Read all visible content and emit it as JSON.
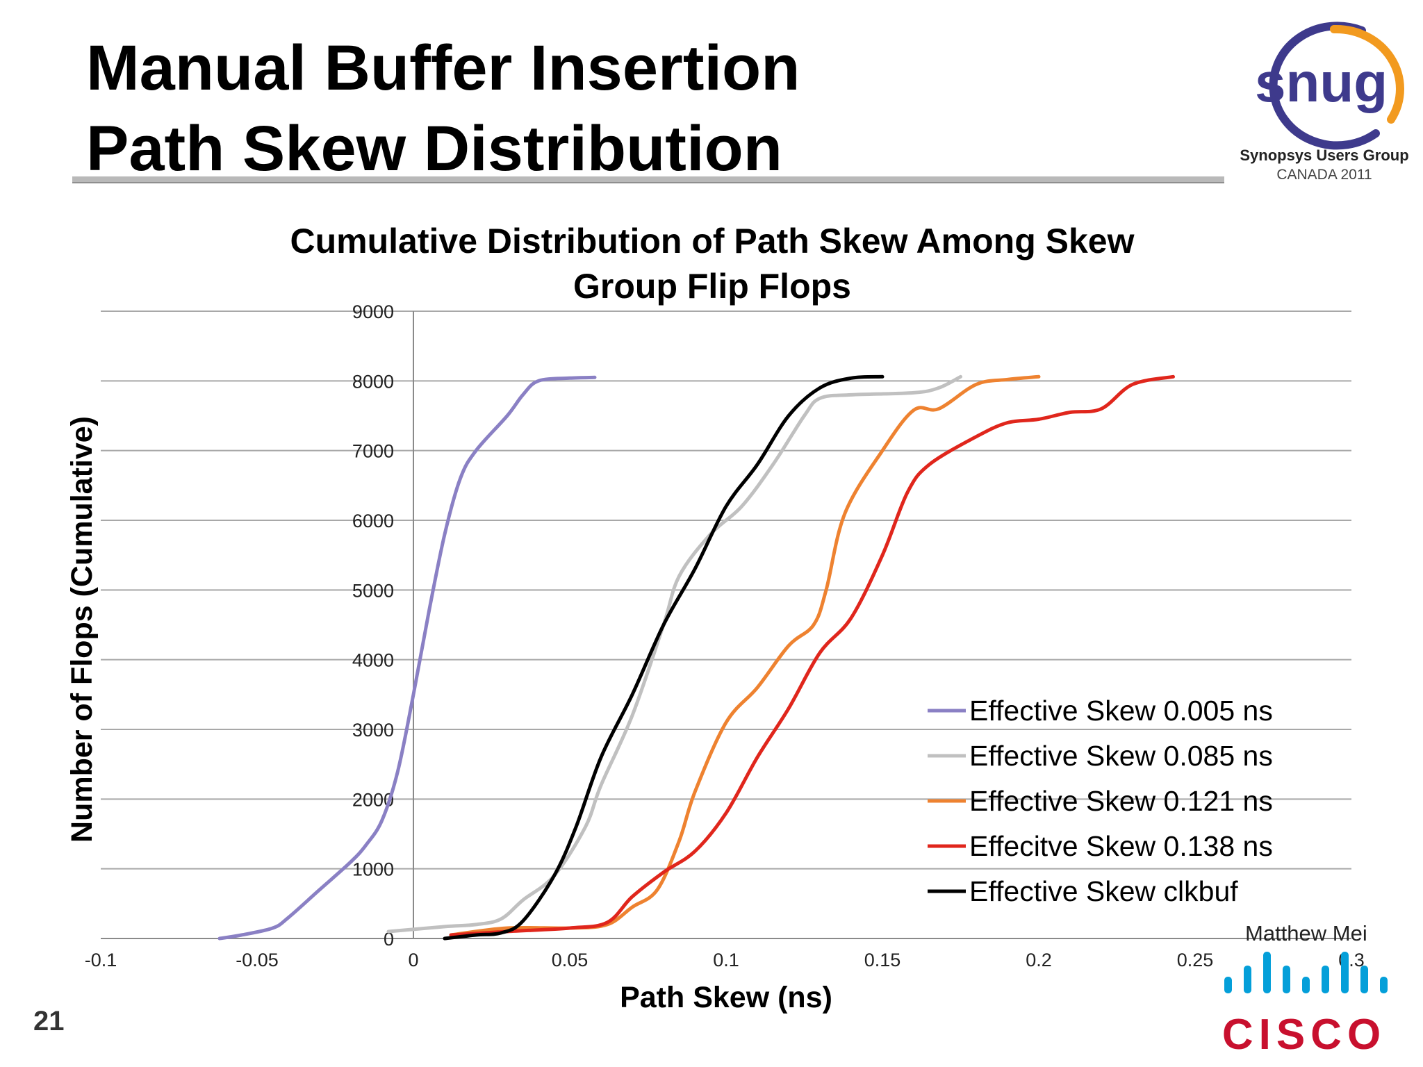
{
  "slide": {
    "title_line1": "Manual Buffer Insertion",
    "title_line2": "Path Skew Distribution",
    "page_number": "21",
    "author": "Matthew Mei",
    "logo_snug": {
      "text": "snug",
      "subtitle": "Synopsys Users Group",
      "event": "CANADA 2011",
      "colors": {
        "ring_purple": "#3e3a8c",
        "ring_orange": "#f29a1f",
        "text": "#3e3a8c"
      }
    },
    "logo_cisco": {
      "text": "CISCO",
      "colors": {
        "bars": "#049fd9",
        "text": "#c8102e"
      }
    }
  },
  "chart_data": {
    "type": "line",
    "title_line1": "Cumulative Distribution of Path Skew Among Skew",
    "title_line2": "Group Flip Flops",
    "xlabel": "Path Skew (ns)",
    "ylabel": "Number of Flops (Cumulative)",
    "xlim": [
      -0.1,
      0.3
    ],
    "ylim": [
      0,
      9000
    ],
    "xticks": [
      -0.1,
      -0.05,
      0,
      0.05,
      0.1,
      0.15,
      0.2,
      0.25,
      0.3
    ],
    "xtick_labels": [
      "-0.1",
      "-0.05",
      "0",
      "0.05",
      "0.1",
      "0.15",
      "0.2",
      "0.25",
      "0.3"
    ],
    "yticks": [
      0,
      1000,
      2000,
      3000,
      4000,
      5000,
      6000,
      7000,
      8000,
      9000
    ],
    "ytick_labels": [
      "0",
      "1000",
      "2000",
      "3000",
      "4000",
      "5000",
      "6000",
      "7000",
      "8000",
      "9000"
    ],
    "grid": {
      "horizontal": true,
      "vertical": false
    },
    "legend_position": "bottom-right",
    "series": [
      {
        "name": "Effective Skew 0.005 ns",
        "color": "#8a80c4",
        "points": [
          [
            -0.062,
            0
          ],
          [
            -0.055,
            50
          ],
          [
            -0.045,
            150
          ],
          [
            -0.04,
            300
          ],
          [
            -0.03,
            700
          ],
          [
            -0.02,
            1100
          ],
          [
            -0.015,
            1350
          ],
          [
            -0.01,
            1700
          ],
          [
            -0.005,
            2400
          ],
          [
            0,
            3500
          ],
          [
            0.005,
            4700
          ],
          [
            0.01,
            5800
          ],
          [
            0.015,
            6600
          ],
          [
            0.02,
            7000
          ],
          [
            0.03,
            7500
          ],
          [
            0.035,
            7800
          ],
          [
            0.04,
            8000
          ],
          [
            0.05,
            8040
          ],
          [
            0.058,
            8050
          ]
        ]
      },
      {
        "name": "Effective Skew 0.085 ns",
        "color": "#c0c0c0",
        "points": [
          [
            -0.008,
            100
          ],
          [
            0.01,
            170
          ],
          [
            0.02,
            200
          ],
          [
            0.028,
            280
          ],
          [
            0.035,
            550
          ],
          [
            0.045,
            900
          ],
          [
            0.055,
            1600
          ],
          [
            0.06,
            2200
          ],
          [
            0.07,
            3200
          ],
          [
            0.08,
            4500
          ],
          [
            0.085,
            5200
          ],
          [
            0.095,
            5800
          ],
          [
            0.105,
            6200
          ],
          [
            0.115,
            6800
          ],
          [
            0.125,
            7500
          ],
          [
            0.13,
            7750
          ],
          [
            0.14,
            7800
          ],
          [
            0.16,
            7830
          ],
          [
            0.168,
            7900
          ],
          [
            0.175,
            8060
          ]
        ]
      },
      {
        "name": "Effective Skew 0.121 ns",
        "color": "#ee8230",
        "points": [
          [
            0.012,
            50
          ],
          [
            0.03,
            150
          ],
          [
            0.05,
            150
          ],
          [
            0.062,
            200
          ],
          [
            0.07,
            450
          ],
          [
            0.078,
            700
          ],
          [
            0.085,
            1400
          ],
          [
            0.09,
            2100
          ],
          [
            0.1,
            3100
          ],
          [
            0.11,
            3600
          ],
          [
            0.12,
            4200
          ],
          [
            0.128,
            4500
          ],
          [
            0.132,
            5000
          ],
          [
            0.138,
            6100
          ],
          [
            0.15,
            7000
          ],
          [
            0.16,
            7580
          ],
          [
            0.168,
            7600
          ],
          [
            0.18,
            7950
          ],
          [
            0.19,
            8020
          ],
          [
            0.2,
            8060
          ]
        ]
      },
      {
        "name": "Effecitve Skew 0.138 ns",
        "color": "#e0261c",
        "points": [
          [
            0.012,
            50
          ],
          [
            0.03,
            100
          ],
          [
            0.05,
            150
          ],
          [
            0.062,
            230
          ],
          [
            0.07,
            600
          ],
          [
            0.08,
            950
          ],
          [
            0.09,
            1250
          ],
          [
            0.1,
            1800
          ],
          [
            0.11,
            2600
          ],
          [
            0.12,
            3300
          ],
          [
            0.13,
            4100
          ],
          [
            0.14,
            4600
          ],
          [
            0.15,
            5500
          ],
          [
            0.158,
            6400
          ],
          [
            0.165,
            6800
          ],
          [
            0.18,
            7200
          ],
          [
            0.19,
            7400
          ],
          [
            0.2,
            7450
          ],
          [
            0.21,
            7550
          ],
          [
            0.22,
            7600
          ],
          [
            0.23,
            7950
          ],
          [
            0.243,
            8060
          ]
        ]
      },
      {
        "name": "Effective Skew clkbuf",
        "color": "#000000",
        "points": [
          [
            0.01,
            0
          ],
          [
            0.02,
            50
          ],
          [
            0.028,
            80
          ],
          [
            0.035,
            250
          ],
          [
            0.045,
            900
          ],
          [
            0.052,
            1600
          ],
          [
            0.06,
            2600
          ],
          [
            0.07,
            3500
          ],
          [
            0.08,
            4500
          ],
          [
            0.09,
            5300
          ],
          [
            0.1,
            6200
          ],
          [
            0.11,
            6800
          ],
          [
            0.12,
            7500
          ],
          [
            0.13,
            7900
          ],
          [
            0.14,
            8040
          ],
          [
            0.15,
            8060
          ]
        ]
      }
    ]
  }
}
